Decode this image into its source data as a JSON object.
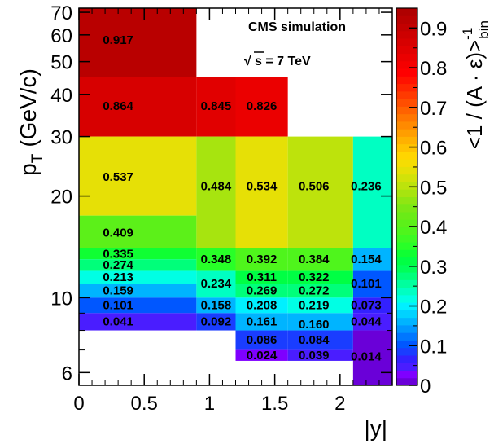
{
  "chart_data": {
    "type": "heatmap",
    "title": "",
    "xlabel": "|y|",
    "ylabel_main": "p",
    "ylabel_sub": "T",
    "ylabel_unit": "(GeV/c)",
    "y_scale": "log",
    "xlim": [
      0,
      2.4
    ],
    "ylim": [
      5.5,
      72
    ],
    "x_ticks": [
      "0",
      "0.5",
      "1",
      "1.5",
      "2"
    ],
    "x_tick_values": [
      0,
      0.5,
      1,
      1.5,
      2
    ],
    "y_ticks": [
      "6",
      "10",
      "20",
      "30",
      "40",
      "50",
      "60",
      "70"
    ],
    "y_tick_values": [
      6,
      10,
      20,
      30,
      40,
      50,
      60,
      70
    ],
    "colorbar": {
      "label_main": "<1 / (A · ε)>",
      "label_sup": "-1",
      "label_sub": "bin",
      "range": [
        0,
        0.95
      ],
      "ticks": [
        "0",
        "0.1",
        "0.2",
        "0.3",
        "0.4",
        "0.5",
        "0.6",
        "0.7",
        "0.8",
        "0.9"
      ],
      "tick_values": [
        0,
        0.1,
        0.2,
        0.3,
        0.4,
        0.5,
        0.6,
        0.7,
        0.8,
        0.9
      ]
    },
    "annotations": {
      "experiment": "CMS simulation",
      "energy_sqrt": "√",
      "energy_rest": "s = 7 TeV"
    },
    "grid": false,
    "cells": [
      {
        "x0": 0.0,
        "x1": 0.9,
        "y0": 45,
        "y1": 72,
        "value": 0.917,
        "label": "0.917",
        "lx": 0.3,
        "ly": 58
      },
      {
        "x0": 0.0,
        "x1": 0.9,
        "y0": 30,
        "y1": 45,
        "value": 0.864,
        "label": "0.864",
        "lx": 0.3,
        "ly": 37
      },
      {
        "x0": 0.9,
        "x1": 1.2,
        "y0": 30,
        "y1": 45,
        "value": 0.845,
        "label": "0.845",
        "lx": 1.05,
        "ly": 37
      },
      {
        "x0": 1.2,
        "x1": 1.6,
        "y0": 30,
        "y1": 45,
        "value": 0.826,
        "label": "0.826",
        "lx": 1.4,
        "ly": 37
      },
      {
        "x0": 0.0,
        "x1": 0.9,
        "y0": 17.5,
        "y1": 30,
        "value": 0.537,
        "label": "0.537",
        "lx": 0.3,
        "ly": 22.8
      },
      {
        "x0": 0.0,
        "x1": 0.9,
        "y0": 14,
        "y1": 17.5,
        "value": 0.409,
        "label": "0.409",
        "lx": 0.3,
        "ly": 15.6
      },
      {
        "x0": 0.9,
        "x1": 1.2,
        "y0": 14,
        "y1": 30,
        "value": 0.484,
        "label": "0.484",
        "lx": 1.05,
        "ly": 21.4
      },
      {
        "x0": 1.2,
        "x1": 1.6,
        "y0": 14,
        "y1": 30,
        "value": 0.534,
        "label": "0.534",
        "lx": 1.4,
        "ly": 21.4
      },
      {
        "x0": 1.6,
        "x1": 2.1,
        "y0": 14,
        "y1": 30,
        "value": 0.506,
        "label": "0.506",
        "lx": 1.8,
        "ly": 21.4
      },
      {
        "x0": 2.1,
        "x1": 2.4,
        "y0": 14,
        "y1": 30,
        "value": 0.236,
        "label": "0.236",
        "lx": 2.2,
        "ly": 21.4
      },
      {
        "x0": 0.0,
        "x1": 0.9,
        "y0": 13,
        "y1": 14,
        "value": 0.335,
        "label": "0.335",
        "lx": 0.3,
        "ly": 13.5
      },
      {
        "x0": 0.0,
        "x1": 0.9,
        "y0": 12,
        "y1": 13,
        "value": 0.274,
        "label": "0.274",
        "lx": 0.3,
        "ly": 12.5
      },
      {
        "x0": 0.0,
        "x1": 0.9,
        "y0": 11,
        "y1": 12,
        "value": 0.213,
        "label": "0.213",
        "lx": 0.3,
        "ly": 11.5
      },
      {
        "x0": 0.0,
        "x1": 0.9,
        "y0": 10,
        "y1": 11,
        "value": 0.159,
        "label": "0.159",
        "lx": 0.3,
        "ly": 10.5
      },
      {
        "x0": 0.0,
        "x1": 0.9,
        "y0": 9,
        "y1": 10,
        "value": 0.101,
        "label": "0.101",
        "lx": 0.3,
        "ly": 9.5
      },
      {
        "x0": 0.0,
        "x1": 0.9,
        "y0": 8,
        "y1": 9,
        "value": 0.041,
        "label": "0.041",
        "lx": 0.3,
        "ly": 8.5
      },
      {
        "x0": 0.9,
        "x1": 1.2,
        "y0": 12,
        "y1": 14,
        "value": 0.348,
        "label": "0.348",
        "lx": 1.05,
        "ly": 13.0
      },
      {
        "x0": 1.2,
        "x1": 1.6,
        "y0": 12,
        "y1": 14,
        "value": 0.392,
        "label": "0.392",
        "lx": 1.4,
        "ly": 13.0
      },
      {
        "x0": 1.6,
        "x1": 2.1,
        "y0": 12,
        "y1": 14,
        "value": 0.384,
        "label": "0.384",
        "lx": 1.8,
        "ly": 13.0
      },
      {
        "x0": 2.1,
        "x1": 2.4,
        "y0": 12,
        "y1": 14,
        "value": 0.154,
        "label": "0.154",
        "lx": 2.2,
        "ly": 13.0
      },
      {
        "x0": 0.9,
        "x1": 1.2,
        "y0": 10,
        "y1": 12,
        "value": 0.234,
        "label": "0.234",
        "lx": 1.05,
        "ly": 11.0
      },
      {
        "x0": 1.2,
        "x1": 1.6,
        "y0": 11,
        "y1": 12,
        "value": 0.311,
        "label": "0.311",
        "lx": 1.4,
        "ly": 11.5
      },
      {
        "x0": 1.6,
        "x1": 2.1,
        "y0": 11,
        "y1": 12,
        "value": 0.322,
        "label": "0.322",
        "lx": 1.8,
        "ly": 11.5
      },
      {
        "x0": 2.1,
        "x1": 2.4,
        "y0": 10,
        "y1": 12,
        "value": 0.101,
        "label": "0.101",
        "lx": 2.2,
        "ly": 11.0
      },
      {
        "x0": 1.2,
        "x1": 1.6,
        "y0": 10,
        "y1": 11,
        "value": 0.269,
        "label": "0.269",
        "lx": 1.4,
        "ly": 10.5
      },
      {
        "x0": 1.6,
        "x1": 2.1,
        "y0": 10,
        "y1": 11,
        "value": 0.272,
        "label": "0.272",
        "lx": 1.8,
        "ly": 10.5
      },
      {
        "x0": 0.9,
        "x1": 1.2,
        "y0": 9,
        "y1": 10,
        "value": 0.158,
        "label": "0.158",
        "lx": 1.05,
        "ly": 9.5
      },
      {
        "x0": 1.2,
        "x1": 1.6,
        "y0": 9,
        "y1": 10,
        "value": 0.208,
        "label": "0.208",
        "lx": 1.4,
        "ly": 9.5
      },
      {
        "x0": 1.6,
        "x1": 2.1,
        "y0": 9,
        "y1": 10,
        "value": 0.219,
        "label": "0.219",
        "lx": 1.8,
        "ly": 9.5
      },
      {
        "x0": 2.1,
        "x1": 2.4,
        "y0": 9,
        "y1": 10,
        "value": 0.073,
        "label": "0.073",
        "lx": 2.2,
        "ly": 9.5
      },
      {
        "x0": 0.9,
        "x1": 1.2,
        "y0": 8,
        "y1": 9,
        "value": 0.092,
        "label": "0.092",
        "lx": 1.05,
        "ly": 8.5
      },
      {
        "x0": 1.2,
        "x1": 1.6,
        "y0": 8,
        "y1": 9,
        "value": 0.161,
        "label": "0.161",
        "lx": 1.4,
        "ly": 8.5
      },
      {
        "x0": 1.6,
        "x1": 2.1,
        "y0": 8,
        "y1": 9,
        "value": 0.16,
        "label": "0.160",
        "lx": 1.8,
        "ly": 8.35
      },
      {
        "x0": 2.1,
        "x1": 2.4,
        "y0": 8,
        "y1": 9,
        "value": 0.044,
        "label": "0.044",
        "lx": 2.2,
        "ly": 8.5
      },
      {
        "x0": 1.2,
        "x1": 1.6,
        "y0": 7,
        "y1": 8,
        "value": 0.086,
        "label": "0.086",
        "lx": 1.4,
        "ly": 7.5
      },
      {
        "x0": 1.6,
        "x1": 2.1,
        "y0": 7,
        "y1": 8,
        "value": 0.084,
        "label": "0.084",
        "lx": 1.8,
        "ly": 7.5
      },
      {
        "x0": 1.2,
        "x1": 1.6,
        "y0": 6.5,
        "y1": 7,
        "value": 0.024,
        "label": "0.024",
        "lx": 1.4,
        "ly": 6.75
      },
      {
        "x0": 1.6,
        "x1": 2.1,
        "y0": 6.5,
        "y1": 7,
        "value": 0.039,
        "label": "0.039",
        "lx": 1.8,
        "ly": 6.75
      },
      {
        "x0": 2.1,
        "x1": 2.4,
        "y0": 5.5,
        "y1": 8,
        "value": 0.014,
        "label": "0.014",
        "lx": 2.2,
        "ly": 6.7
      }
    ]
  }
}
